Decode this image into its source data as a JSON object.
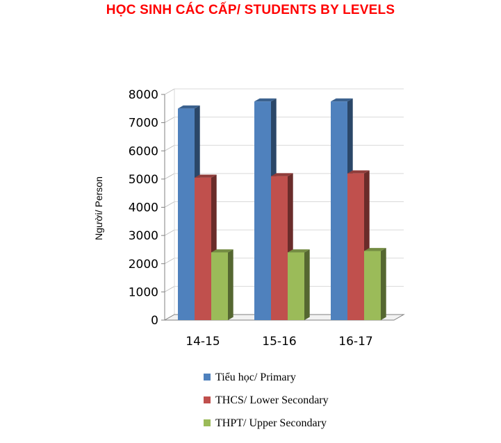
{
  "chart_data": {
    "type": "bar",
    "title": "HỌC SINH CÁC CẤP/ STUDENTS BY LEVELS",
    "ylabel": "Người/ Person",
    "xlabel": "",
    "categories": [
      "14-15",
      "15-16",
      "16-17"
    ],
    "ylim": [
      0,
      8000
    ],
    "yticks": [
      "0",
      "1000",
      "2000",
      "3000",
      "4000",
      "5000",
      "6000",
      "7000",
      "8000"
    ],
    "grid": true,
    "legend_position": "bottom",
    "series": [
      {
        "name": "Tiểu học/ Primary",
        "values": [
          7500,
          7750,
          7750
        ],
        "color": "#4f81bd"
      },
      {
        "name": "THCS/ Lower Secondary",
        "values": [
          5050,
          5100,
          5200
        ],
        "color": "#c0504d"
      },
      {
        "name": "THPT/ Upper Secondary",
        "values": [
          2400,
          2400,
          2450
        ],
        "color": "#9bbb59"
      }
    ]
  }
}
